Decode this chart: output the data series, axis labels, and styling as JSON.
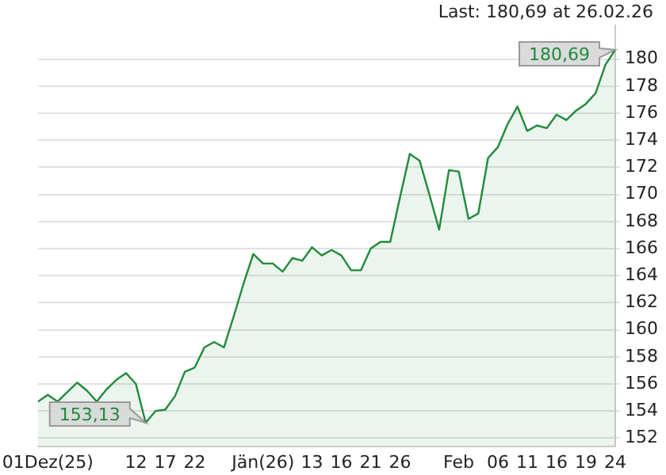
{
  "chart_data": {
    "type": "area",
    "categories": [
      null,
      "01Dez(25)",
      null,
      null,
      null,
      null,
      null,
      null,
      null,
      null,
      "12",
      null,
      null,
      "17",
      null,
      null,
      "22",
      null,
      null,
      null,
      null,
      null,
      null,
      "Jän(26)",
      null,
      null,
      null,
      null,
      "13",
      null,
      null,
      "16",
      null,
      null,
      "21",
      null,
      null,
      "26",
      null,
      null,
      null,
      null,
      null,
      "Feb",
      null,
      null,
      null,
      "06",
      null,
      null,
      "11",
      null,
      null,
      "16",
      null,
      null,
      "19",
      null,
      null,
      "24"
    ],
    "series": [
      {
        "color": "#1f8a3b",
        "values": [
          154.7,
          155.2,
          154.7,
          155.4,
          156.1,
          155.5,
          154.7,
          155.6,
          156.3,
          156.8,
          156.0,
          153.13,
          154.0,
          154.1,
          155.1,
          156.9,
          157.2,
          158.7,
          159.1,
          158.7,
          161.0,
          163.4,
          165.6,
          164.9,
          164.9,
          164.3,
          165.3,
          165.1,
          166.1,
          165.5,
          165.9,
          165.5,
          164.4,
          164.4,
          166.0,
          166.5,
          166.5,
          169.8,
          173.0,
          172.5,
          170.0,
          167.4,
          171.8,
          171.7,
          168.2,
          168.6,
          172.7,
          173.5,
          175.2,
          176.5,
          174.7,
          175.1,
          174.9,
          175.9,
          175.5,
          176.2,
          176.7,
          177.5,
          179.6,
          180.69
        ]
      }
    ],
    "ylim": [
      151.4,
      182.5
    ],
    "yticks": [
      152,
      154,
      156,
      158,
      160,
      162,
      164,
      166,
      168,
      170,
      172,
      174,
      176,
      178,
      180
    ],
    "grid": "y",
    "annotations": [
      "Last: 180,69 at 26.02.26",
      "180,69",
      "153,13"
    ]
  }
}
